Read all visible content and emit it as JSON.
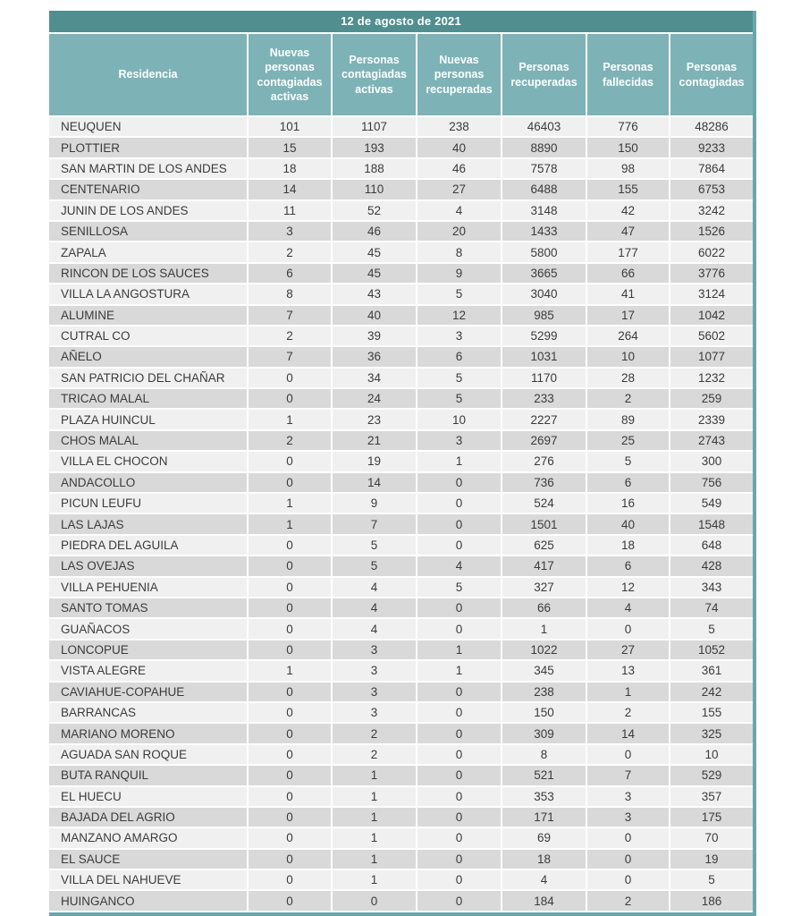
{
  "report": {
    "date_title": "12 de agosto de 2021"
  },
  "colors": {
    "title_bar": "#508e90",
    "header_band": "#7db3b7",
    "row_light": "#f0f0f0",
    "row_dark": "#d9d9d9",
    "outer_border": "#6ba6aa",
    "body_text": "#3b3b3b",
    "header_text": "#ffffff"
  },
  "table": {
    "columns": [
      "Residencia",
      "Nuevas personas contagiadas activas",
      "Personas contagiadas activas",
      "Nuevas personas recuperadas",
      "Personas recuperadas",
      "Personas fallecidas",
      "Personas contagiadas"
    ],
    "rows": [
      [
        "NEUQUEN",
        101,
        1107,
        238,
        46403,
        776,
        48286
      ],
      [
        "PLOTTIER",
        15,
        193,
        40,
        8890,
        150,
        9233
      ],
      [
        "SAN MARTIN DE LOS ANDES",
        18,
        188,
        46,
        7578,
        98,
        7864
      ],
      [
        "CENTENARIO",
        14,
        110,
        27,
        6488,
        155,
        6753
      ],
      [
        "JUNIN DE LOS ANDES",
        11,
        52,
        4,
        3148,
        42,
        3242
      ],
      [
        "SENILLOSA",
        3,
        46,
        20,
        1433,
        47,
        1526
      ],
      [
        "ZAPALA",
        2,
        45,
        8,
        5800,
        177,
        6022
      ],
      [
        "RINCON DE LOS SAUCES",
        6,
        45,
        9,
        3665,
        66,
        3776
      ],
      [
        "VILLA LA ANGOSTURA",
        8,
        43,
        5,
        3040,
        41,
        3124
      ],
      [
        "ALUMINE",
        7,
        40,
        12,
        985,
        17,
        1042
      ],
      [
        "CUTRAL CO",
        2,
        39,
        3,
        5299,
        264,
        5602
      ],
      [
        "AÑELO",
        7,
        36,
        6,
        1031,
        10,
        1077
      ],
      [
        "SAN PATRICIO DEL CHAÑAR",
        0,
        34,
        5,
        1170,
        28,
        1232
      ],
      [
        "TRICAO MALAL",
        0,
        24,
        5,
        233,
        2,
        259
      ],
      [
        "PLAZA HUINCUL",
        1,
        23,
        10,
        2227,
        89,
        2339
      ],
      [
        "CHOS MALAL",
        2,
        21,
        3,
        2697,
        25,
        2743
      ],
      [
        "VILLA EL CHOCON",
        0,
        19,
        1,
        276,
        5,
        300
      ],
      [
        "ANDACOLLO",
        0,
        14,
        0,
        736,
        6,
        756
      ],
      [
        "PICUN LEUFU",
        1,
        9,
        0,
        524,
        16,
        549
      ],
      [
        "LAS LAJAS",
        1,
        7,
        0,
        1501,
        40,
        1548
      ],
      [
        "PIEDRA DEL AGUILA",
        0,
        5,
        0,
        625,
        18,
        648
      ],
      [
        "LAS OVEJAS",
        0,
        5,
        4,
        417,
        6,
        428
      ],
      [
        "VILLA PEHUENIA",
        0,
        4,
        5,
        327,
        12,
        343
      ],
      [
        "SANTO TOMAS",
        0,
        4,
        0,
        66,
        4,
        74
      ],
      [
        "GUAÑACOS",
        0,
        4,
        0,
        1,
        0,
        5
      ],
      [
        "LONCOPUE",
        0,
        3,
        1,
        1022,
        27,
        1052
      ],
      [
        "VISTA ALEGRE",
        1,
        3,
        1,
        345,
        13,
        361
      ],
      [
        "CAVIAHUE-COPAHUE",
        0,
        3,
        0,
        238,
        1,
        242
      ],
      [
        "BARRANCAS",
        0,
        3,
        0,
        150,
        2,
        155
      ],
      [
        "MARIANO MORENO",
        0,
        2,
        0,
        309,
        14,
        325
      ],
      [
        "AGUADA SAN ROQUE",
        0,
        2,
        0,
        8,
        0,
        10
      ],
      [
        "BUTA RANQUIL",
        0,
        1,
        0,
        521,
        7,
        529
      ],
      [
        "EL HUECU",
        0,
        1,
        0,
        353,
        3,
        357
      ],
      [
        "BAJADA DEL AGRIO",
        0,
        1,
        0,
        171,
        3,
        175
      ],
      [
        "MANZANO AMARGO",
        0,
        1,
        0,
        69,
        0,
        70
      ],
      [
        "EL SAUCE",
        0,
        1,
        0,
        18,
        0,
        19
      ],
      [
        "VILLA DEL NAHUEVE",
        0,
        1,
        0,
        4,
        0,
        5
      ],
      [
        "HUINGANCO",
        0,
        0,
        0,
        184,
        2,
        186
      ]
    ]
  }
}
